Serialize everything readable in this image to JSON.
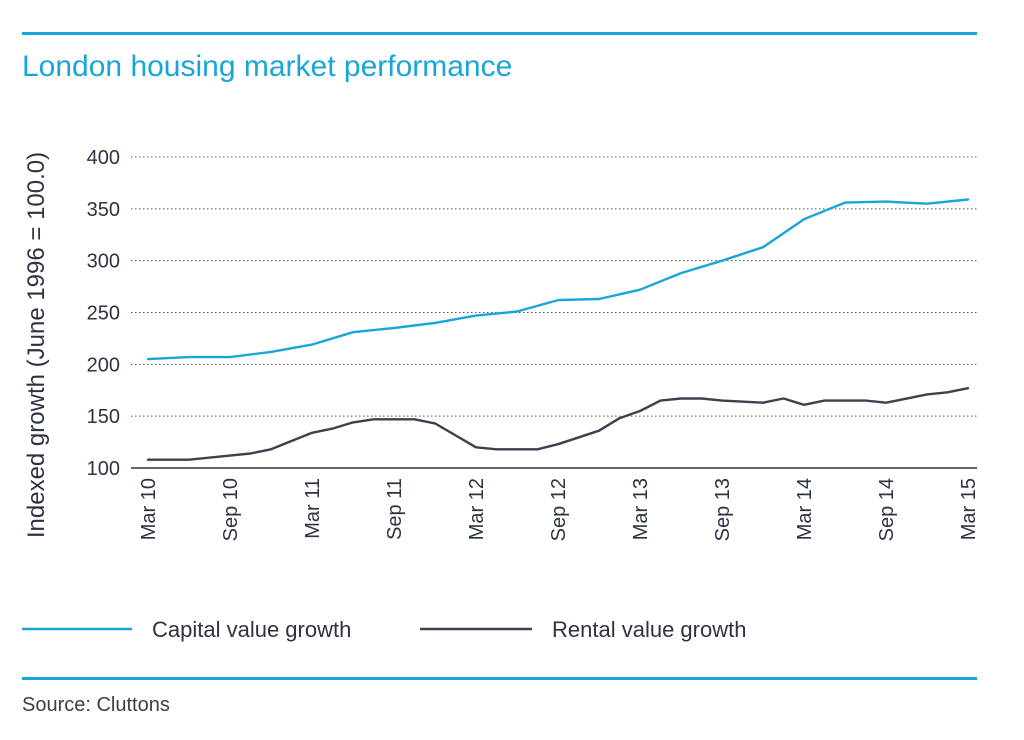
{
  "header": {
    "title": "London housing market performance"
  },
  "footer": {
    "source": "Source: Cluttons"
  },
  "colors": {
    "accent": "#1aa5d8",
    "capital": "#1aa5d8",
    "rental": "#3b414d",
    "grid": "#555555"
  },
  "chart_data": {
    "type": "line",
    "title": "London housing market performance",
    "xlabel": "",
    "ylabel": "Indexed growth (June 1996 = 100.0)",
    "ylim": [
      100,
      400
    ],
    "yticks": [
      100,
      150,
      200,
      250,
      300,
      350,
      400
    ],
    "grid": true,
    "legend_position": "bottom",
    "x_labels": [
      "Mar 10",
      "Sep 10",
      "Mar 11",
      "Sep 11",
      "Mar 12",
      "Sep 12",
      "Mar 13",
      "Sep 13",
      "Mar 14",
      "Sep 14",
      "Mar 15"
    ],
    "series": [
      {
        "name": "Capital value growth",
        "color": "#1aa5d8",
        "points": [
          [
            0,
            205
          ],
          [
            0.5,
            207
          ],
          [
            1,
            207
          ],
          [
            1.5,
            212
          ],
          [
            2,
            219
          ],
          [
            2.5,
            231
          ],
          [
            3,
            235
          ],
          [
            3.5,
            240
          ],
          [
            4,
            247
          ],
          [
            4.5,
            251
          ],
          [
            5,
            262
          ],
          [
            5.5,
            263
          ],
          [
            6,
            272
          ],
          [
            6.5,
            288
          ],
          [
            7,
            300
          ],
          [
            7.5,
            313
          ],
          [
            8,
            340
          ],
          [
            8.5,
            356
          ],
          [
            9,
            357
          ],
          [
            9.5,
            355
          ],
          [
            10,
            359
          ]
        ]
      },
      {
        "name": "Rental value growth",
        "color": "#3b414d",
        "points": [
          [
            0,
            108
          ],
          [
            0.5,
            108
          ],
          [
            1,
            112
          ],
          [
            1.25,
            114
          ],
          [
            1.5,
            118
          ],
          [
            2,
            134
          ],
          [
            2.25,
            138
          ],
          [
            2.5,
            144
          ],
          [
            2.75,
            147
          ],
          [
            3,
            147
          ],
          [
            3.25,
            147
          ],
          [
            3.5,
            143
          ],
          [
            4,
            120
          ],
          [
            4.25,
            118
          ],
          [
            4.75,
            118
          ],
          [
            5,
            123
          ],
          [
            5.5,
            136
          ],
          [
            5.75,
            148
          ],
          [
            6,
            155
          ],
          [
            6.25,
            165
          ],
          [
            6.5,
            167
          ],
          [
            6.75,
            167
          ],
          [
            7,
            165
          ],
          [
            7.5,
            163
          ],
          [
            7.75,
            167
          ],
          [
            8,
            161
          ],
          [
            8.25,
            165
          ],
          [
            8.5,
            165
          ],
          [
            8.75,
            165
          ],
          [
            9,
            163
          ],
          [
            9.5,
            171
          ],
          [
            9.75,
            173
          ],
          [
            10,
            177
          ]
        ]
      }
    ]
  }
}
